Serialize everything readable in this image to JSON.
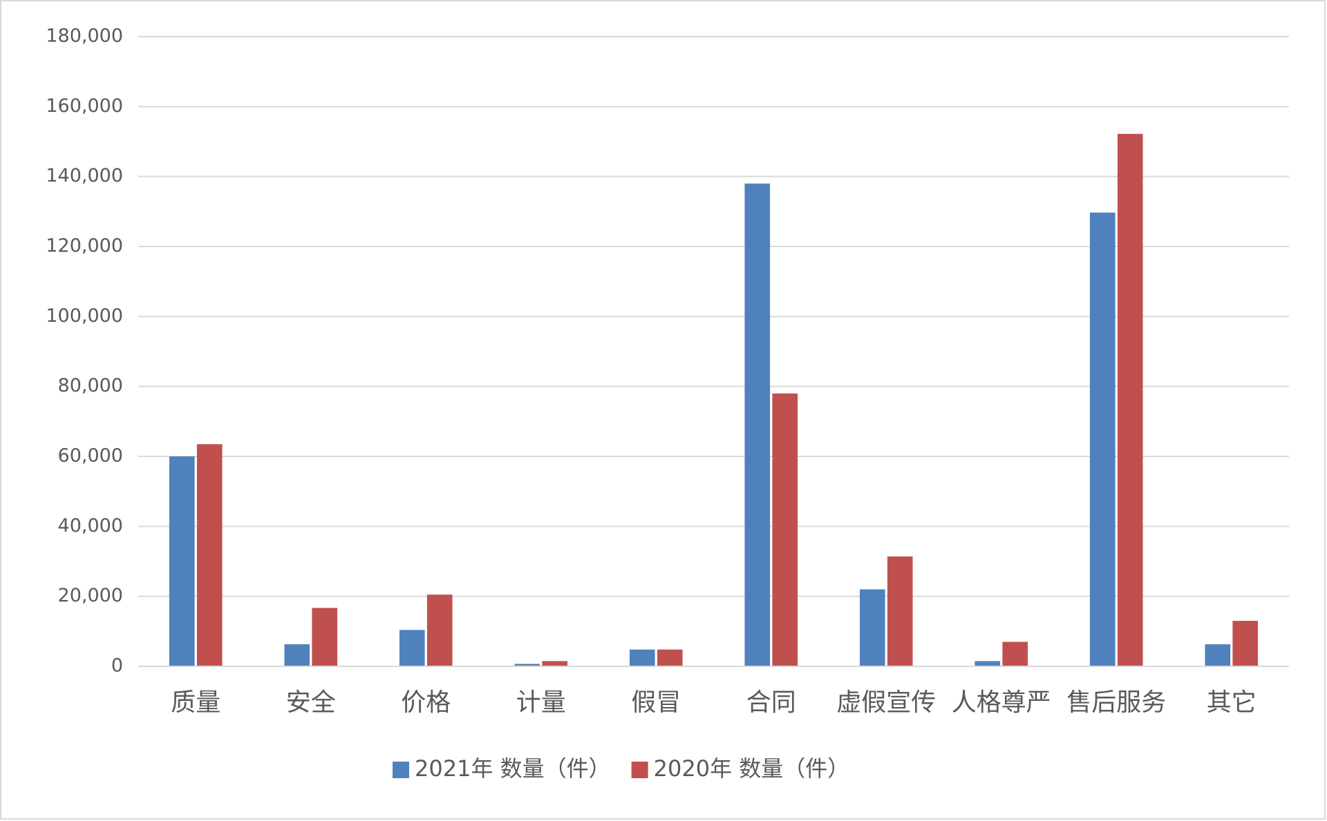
{
  "chart_data": {
    "type": "bar",
    "categories": [
      "质量",
      "安全",
      "价格",
      "计量",
      "假冒",
      "合同",
      "虚假宣传",
      "人格尊严",
      "售后服务",
      "其它"
    ],
    "series": [
      {
        "name": "2021年 数量（件）",
        "color": "#4f81bd",
        "values": [
          60000,
          6300,
          10400,
          700,
          4800,
          138000,
          22000,
          1500,
          129700,
          6300
        ]
      },
      {
        "name": "2020年 数量（件）",
        "color": "#c0504d",
        "values": [
          63500,
          16700,
          20500,
          1500,
          4800,
          78000,
          31400,
          7000,
          152200,
          13000
        ]
      }
    ],
    "ylim": [
      0,
      180000
    ],
    "yticks": [
      0,
      {
        "value": 20000,
        "label": "20,000"
      },
      {
        "value": 40000,
        "label": "40,000"
      },
      {
        "value": 60000,
        "label": "60,000"
      },
      {
        "value": 80000,
        "label": "80,000"
      },
      {
        "value": 100000,
        "label": "100,000"
      },
      {
        "value": 120000,
        "label": "120,000"
      },
      {
        "value": 140000,
        "label": "140,000"
      },
      {
        "value": 160000,
        "label": "160,000"
      },
      {
        "value": 180000,
        "label": "180,000"
      }
    ],
    "grid": true,
    "legend": "bottom"
  }
}
